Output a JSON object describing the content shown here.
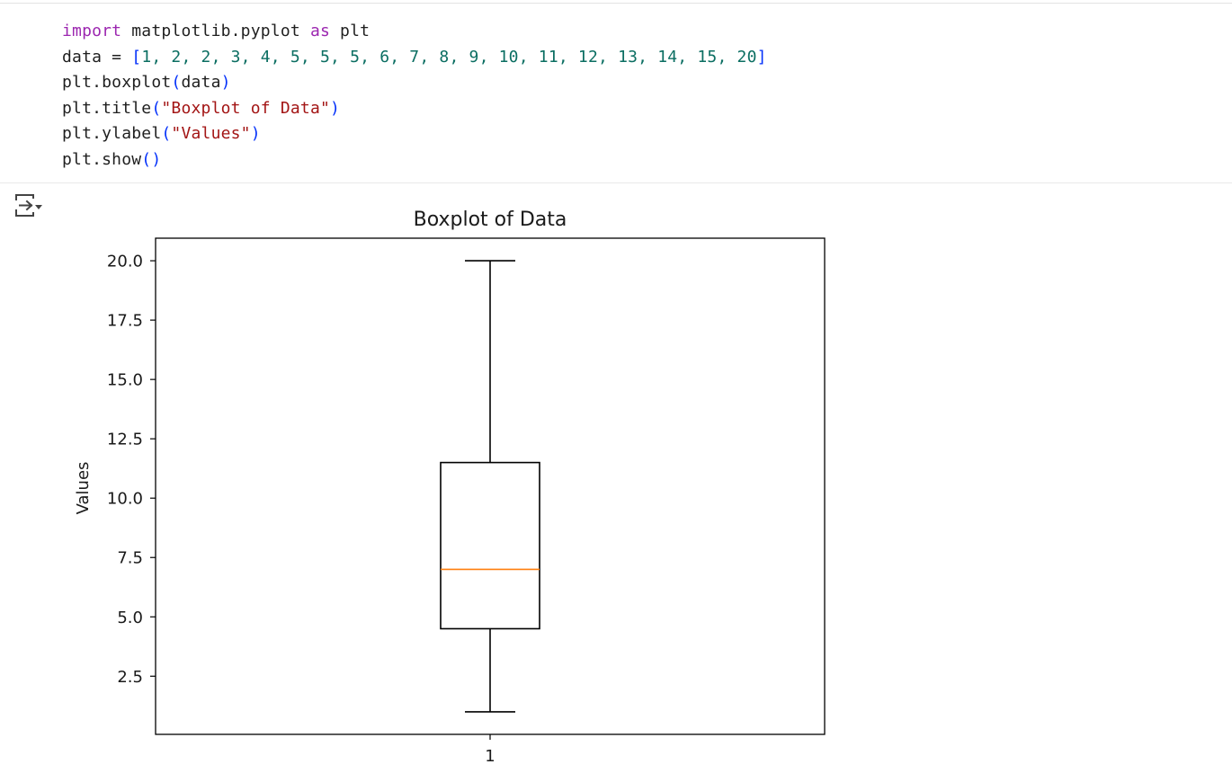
{
  "code_cell": {
    "lines": [
      [
        {
          "t": "import",
          "c": "kw"
        },
        {
          "t": " matplotlib.pyplot ",
          "c": ""
        },
        {
          "t": "as",
          "c": "kw"
        },
        {
          "t": " plt",
          "c": ""
        }
      ],
      [
        {
          "t": "data = ",
          "c": ""
        },
        {
          "t": "[",
          "c": "br"
        },
        {
          "t": "1, 2, 2, 3, 4, 5, 5, 5, 6, 7, 8, 9, 10, 11, 12, 13, 14, 15, 20",
          "c": "num"
        },
        {
          "t": "]",
          "c": "br"
        }
      ],
      [
        {
          "t": "plt.boxplot",
          "c": ""
        },
        {
          "t": "(",
          "c": "br"
        },
        {
          "t": "data",
          "c": ""
        },
        {
          "t": ")",
          "c": "br"
        }
      ],
      [
        {
          "t": "plt.title",
          "c": ""
        },
        {
          "t": "(",
          "c": "br"
        },
        {
          "t": "\"Boxplot of Data\"",
          "c": "str"
        },
        {
          "t": ")",
          "c": "br"
        }
      ],
      [
        {
          "t": "plt.ylabel",
          "c": ""
        },
        {
          "t": "(",
          "c": "br"
        },
        {
          "t": "\"Values\"",
          "c": "str"
        },
        {
          "t": ")",
          "c": "br"
        }
      ],
      [
        {
          "t": "plt.show",
          "c": ""
        },
        {
          "t": "()",
          "c": "br"
        }
      ]
    ]
  },
  "output_toggle": {
    "icon": "output-toggle-icon"
  },
  "chart_data": {
    "type": "boxplot",
    "title": "Boxplot of Data",
    "ylabel": "Values",
    "xlabel": "",
    "categories": [
      "1"
    ],
    "box": {
      "whisker_low": 1,
      "q1": 4.5,
      "median": 7,
      "q3": 11.5,
      "whisker_high": 20
    },
    "ylim": [
      0.05,
      20.95
    ],
    "yticks": [
      2.5,
      5.0,
      7.5,
      10.0,
      12.5,
      15.0,
      17.5,
      20.0
    ],
    "ytick_labels": [
      "2.5",
      "5.0",
      "7.5",
      "10.0",
      "12.5",
      "15.0",
      "17.5",
      "20.0"
    ],
    "grid": false,
    "colors": {
      "box": "#000000",
      "median": "#ff7f0e"
    }
  }
}
